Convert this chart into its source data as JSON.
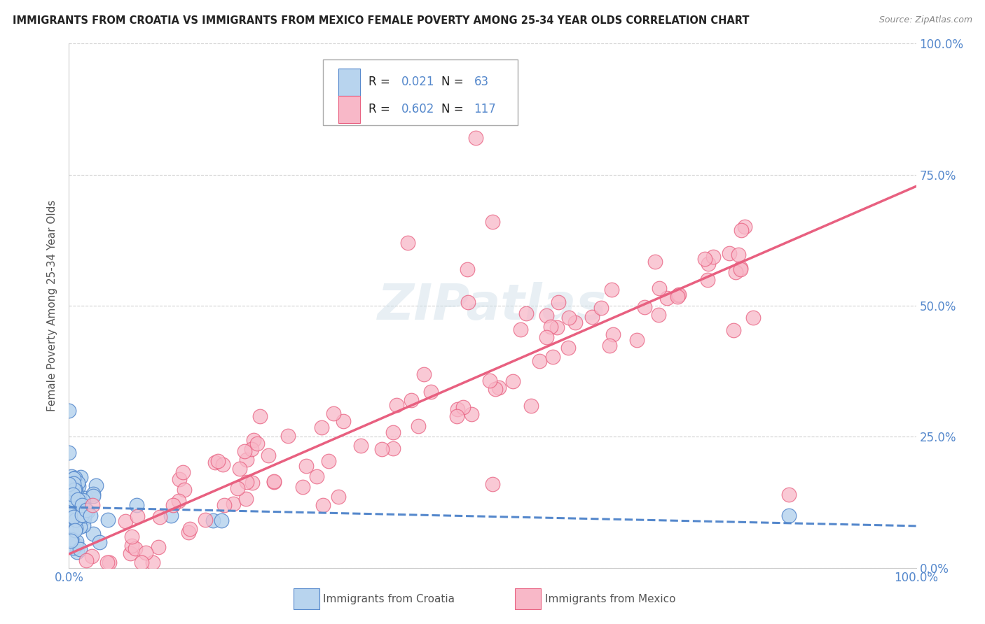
{
  "title": "IMMIGRANTS FROM CROATIA VS IMMIGRANTS FROM MEXICO FEMALE POVERTY AMONG 25-34 YEAR OLDS CORRELATION CHART",
  "source": "Source: ZipAtlas.com",
  "ylabel": "Female Poverty Among 25-34 Year Olds",
  "xlim": [
    0.0,
    1.0
  ],
  "ylim": [
    0.0,
    1.0
  ],
  "xtick_positions": [
    0.0,
    0.25,
    0.5,
    0.75,
    1.0
  ],
  "xticklabels": [
    "0.0%",
    "",
    "",
    "",
    "100.0%"
  ],
  "ytick_positions": [
    0.0,
    0.25,
    0.5,
    0.75,
    1.0
  ],
  "ytick_right_labels": [
    "0.0%",
    "25.0%",
    "50.0%",
    "75.0%",
    "100.0%"
  ],
  "legend_r1": "R = ",
  "legend_v1": "0.021",
  "legend_n1_label": "N = ",
  "legend_n1_val": "63",
  "legend_r2": "R = ",
  "legend_v2": "0.602",
  "legend_n2_label": "N = ",
  "legend_n2_val": "117",
  "croatia_fill": "#b8d4ee",
  "croatia_edge": "#5588cc",
  "mexico_fill": "#f8b8c8",
  "mexico_edge": "#e86080",
  "croatia_line_color": "#5588cc",
  "mexico_line_color": "#e86080",
  "grid_color": "#cccccc",
  "axis_color": "#cccccc",
  "text_color": "#555555",
  "blue_label_color": "#5588cc",
  "watermark_color": "#ccdde8",
  "background": "#ffffff",
  "watermark_text": "ZIPatlas",
  "bottom_label_croatia": "Immigrants from Croatia",
  "bottom_label_mexico": "Immigrants from Mexico"
}
